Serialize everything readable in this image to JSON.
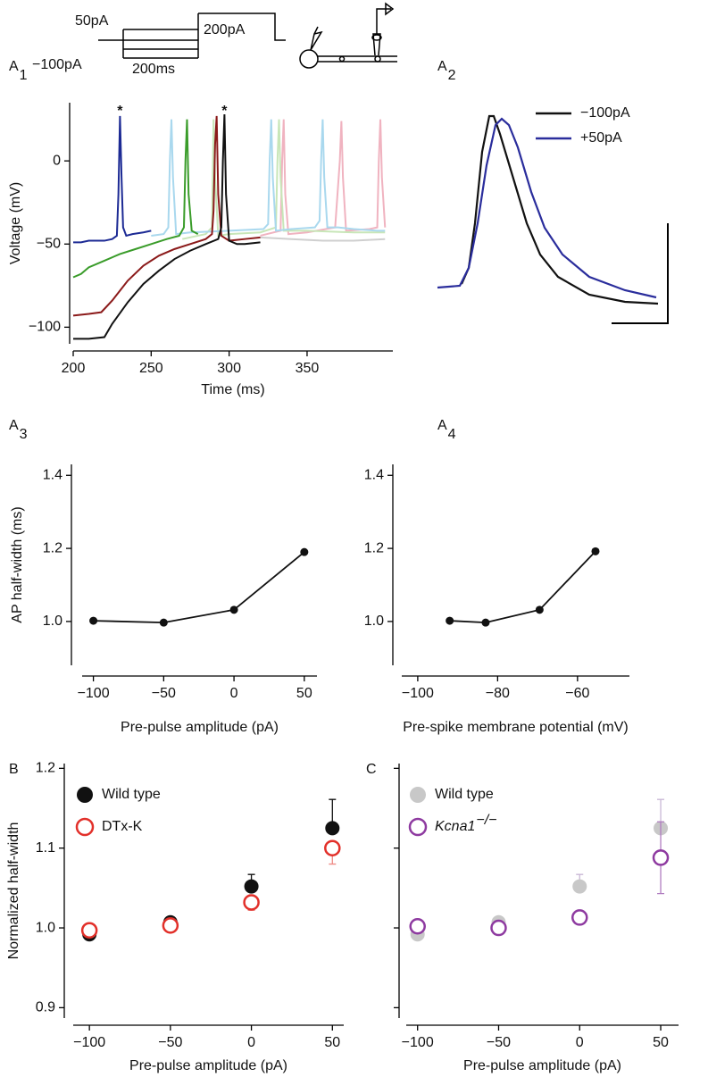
{
  "stimulus": {
    "labels": [
      "50pA",
      "−100pA",
      "200ms",
      "200pA"
    ]
  },
  "chart_data": [
    {
      "type": "line",
      "panel": "A",
      "panel_sub": "1",
      "xlabel": "Time (ms)",
      "ylabel": "Voltage (mV)",
      "xlim": [
        200,
        405
      ],
      "ylim": [
        -110,
        35
      ],
      "xticks": [
        200,
        250,
        300,
        350
      ],
      "yticks": [
        0,
        {
          "value": -50,
          "label": "−50"
        },
        {
          "value": -100,
          "label": "−100"
        }
      ],
      "series": [
        {
          "color": "#cfcfcf",
          "x": [
            320,
            340,
            360,
            380,
            400
          ],
          "values": [
            -46,
            -47,
            -48,
            -48,
            -47
          ]
        },
        {
          "color": "#f0b3c0",
          "x": [
            320,
            333,
            334,
            335,
            336,
            338,
            350,
            368,
            371,
            372,
            373,
            375,
            390,
            395,
            396,
            397,
            398,
            400
          ],
          "values": [
            -45,
            -42,
            0,
            25,
            -20,
            -44,
            -43,
            -40,
            0,
            24,
            -10,
            -42,
            -41,
            -40,
            0,
            25,
            -10,
            -40
          ]
        },
        {
          "color": "#c8e6b8",
          "x": [
            270,
            285,
            289,
            290,
            291,
            293,
            300,
            320,
            330,
            331,
            332,
            333,
            335,
            350,
            380,
            400
          ],
          "values": [
            -47,
            -44,
            -40,
            25,
            -10,
            -45,
            -44,
            -43,
            -40,
            0,
            25,
            -10,
            -42,
            -42,
            -43,
            -43
          ]
        },
        {
          "color": "#a9d8ee",
          "x": [
            250,
            258,
            261,
            262,
            263,
            264,
            266,
            275,
            300,
            322,
            325,
            326,
            327,
            328,
            330,
            340,
            355,
            358,
            359,
            360,
            361,
            363,
            370,
            380,
            395,
            400
          ],
          "values": [
            -45,
            -44,
            -40,
            0,
            25,
            -10,
            -44,
            -43,
            -42,
            -41,
            -38,
            0,
            25,
            -10,
            -42,
            -41,
            -40,
            -36,
            0,
            25,
            -10,
            -40,
            -40,
            -41,
            -42,
            -42
          ]
        },
        {
          "color": "#1c2a94",
          "x": [
            200,
            205,
            210,
            215,
            220,
            225,
            228,
            229,
            230,
            231,
            232,
            234,
            238,
            245,
            250
          ],
          "values": [
            -49,
            -49,
            -48,
            -48,
            -48,
            -47,
            -45,
            -20,
            27,
            -10,
            -40,
            -45,
            -44,
            -43,
            -42
          ]
        },
        {
          "color": "#3a9c2a",
          "x": [
            200,
            205,
            210,
            220,
            230,
            240,
            250,
            260,
            268,
            271,
            272,
            273,
            274,
            276,
            280
          ],
          "values": [
            -70,
            -68,
            -64,
            -60,
            -56,
            -53,
            -50,
            -47,
            -45,
            -40,
            0,
            25,
            -20,
            -42,
            -44
          ]
        },
        {
          "color": "#8b1a1a",
          "x": [
            200,
            210,
            218,
            225,
            235,
            245,
            255,
            265,
            275,
            285,
            289,
            290,
            291,
            292,
            293,
            295,
            300,
            310,
            320
          ],
          "values": [
            -93,
            -92,
            -91,
            -84,
            -72,
            -63,
            -57,
            -53,
            -50,
            -47,
            -44,
            -30,
            10,
            27,
            -20,
            -45,
            -48,
            -47,
            -46
          ]
        },
        {
          "color": "#111111",
          "x": [
            200,
            210,
            220,
            225,
            235,
            245,
            255,
            265,
            275,
            285,
            293,
            295,
            296,
            297,
            298,
            300,
            305,
            310,
            320
          ],
          "values": [
            -107,
            -107,
            -106,
            -98,
            -85,
            -74,
            -66,
            -59,
            -54,
            -50,
            -47,
            -40,
            0,
            28,
            -20,
            -48,
            -50,
            -50,
            -49
          ]
        }
      ],
      "annotations": [
        {
          "text": "*",
          "x": 230
        },
        {
          "text": "*",
          "x": 297
        }
      ]
    },
    {
      "type": "line",
      "panel": "A",
      "panel_sub": "2",
      "legend": "upper right",
      "series": [
        {
          "name": "−100pA",
          "color": "#111111",
          "x": [
            0.54,
            0.7,
            0.84,
            1.0,
            1.16,
            1.26,
            1.4,
            1.7,
            2.0,
            2.3,
            2.7,
            3.4,
            4.2,
            4.94
          ],
          "values": [
            8.8,
            16,
            36,
            68,
            84,
            84,
            76,
            56,
            36,
            22,
            12,
            4,
            0.8,
            0
          ]
        },
        {
          "name": "+50pA",
          "color": "#2a2d9c",
          "x": [
            0,
            0.5,
            0.7,
            0.9,
            1.1,
            1.3,
            1.44,
            1.6,
            1.8,
            2.1,
            2.4,
            2.8,
            3.4,
            4.2,
            4.9
          ],
          "values": [
            7.2,
            8,
            16,
            36,
            62,
            80,
            82.8,
            80,
            70,
            50,
            34,
            22,
            12,
            6,
            2.8
          ]
        }
      ]
    },
    {
      "type": "line",
      "panel": "A",
      "panel_sub": "3",
      "xlabel": "Pre-pulse amplitude (pA)",
      "ylabel": "AP half-width (ms)",
      "x": [
        -100,
        -50,
        0,
        50
      ],
      "values": [
        1.002,
        0.997,
        1.032,
        1.19
      ],
      "color": "#111111",
      "xlim": [
        -108,
        59
      ],
      "ylim": [
        0.88,
        1.43
      ],
      "xticks": [
        {
          "value": -100,
          "label": "−100"
        },
        {
          "value": -50,
          "label": "−50"
        },
        0,
        50
      ],
      "yticks": [
        {
          "value": 1.0,
          "label": "1.0"
        },
        1.2,
        1.4
      ]
    },
    {
      "type": "line",
      "panel": "A",
      "panel_sub": "4",
      "xlabel": "Pre-spike membrane potential (mV)",
      "x": [
        -92,
        -83,
        -69.5,
        -55.5
      ],
      "values": [
        1.002,
        0.997,
        1.032,
        1.192
      ],
      "color": "#111111",
      "xlim": [
        -104,
        -47
      ],
      "ylim": [
        0.88,
        1.43
      ],
      "xticks": [
        {
          "value": -100,
          "label": "−100"
        },
        {
          "value": -80,
          "label": "−80"
        },
        {
          "value": -60,
          "label": "−60"
        }
      ],
      "yticks": [
        {
          "value": 1.0,
          "label": "1.0"
        },
        1.2,
        1.4
      ]
    },
    {
      "type": "scatter",
      "panel": "B",
      "xlabel": "Pre-pulse amplitude (pA)",
      "ylabel": "Normalized half-width",
      "legend": "upper left",
      "x": [
        -100,
        -50,
        0,
        50
      ],
      "xlim": [
        -110,
        57
      ],
      "ylim": [
        0.887,
        1.206
      ],
      "xticks": [
        {
          "value": -100,
          "label": "−100"
        },
        {
          "value": -50,
          "label": "−50"
        },
        0,
        50
      ],
      "yticks": [
        0.9,
        {
          "value": 1.0,
          "label": "1.0"
        },
        1.1,
        1.2
      ],
      "series": [
        {
          "name": "Wild type",
          "color": "#111111",
          "marker": "filled",
          "error_direction": "up",
          "error_color": "#111111",
          "values": [
            0.992,
            1.007,
            1.052,
            1.125
          ],
          "errors": [
            0.003,
            0.004,
            0.015,
            0.036
          ]
        },
        {
          "name": "DTx-K",
          "color": "#e2302a",
          "marker": "open",
          "error_direction": "down",
          "error_color": "#ee8a85",
          "values": [
            0.997,
            1.003,
            1.032,
            1.1
          ],
          "errors": [
            0.004,
            0.004,
            0.01,
            0.02
          ]
        }
      ]
    },
    {
      "type": "scatter",
      "panel": "C",
      "xlabel": "Pre-pulse amplitude (pA)",
      "legend": "upper left",
      "x": [
        -100,
        -50,
        0,
        50
      ],
      "xlim": [
        -107,
        61
      ],
      "ylim": [
        0.887,
        1.206
      ],
      "xticks": [
        {
          "value": -100,
          "label": "−100"
        },
        {
          "value": -50,
          "label": "−50"
        },
        0,
        50
      ],
      "yticks": [
        0.9,
        1.0,
        1.1,
        1.2
      ],
      "ytick_labels": false,
      "series": [
        {
          "name": "Wild type",
          "color": "#c8c8c8",
          "marker": "filled",
          "error_direction": "up",
          "error_color": "#c9b8d6",
          "values": [
            0.992,
            1.007,
            1.052,
            1.125
          ],
          "errors": [
            0.003,
            0.004,
            0.015,
            0.036
          ]
        },
        {
          "name": "Kcna1",
          "name_sup": "−/−",
          "color": "#8e3aa0",
          "marker": "open",
          "error_direction": "both",
          "error_color": "#b07cc0",
          "values": [
            1.002,
            1.0,
            1.013,
            1.088
          ],
          "errors": [
            0.003,
            0.003,
            0.005,
            0.045
          ]
        }
      ]
    }
  ]
}
